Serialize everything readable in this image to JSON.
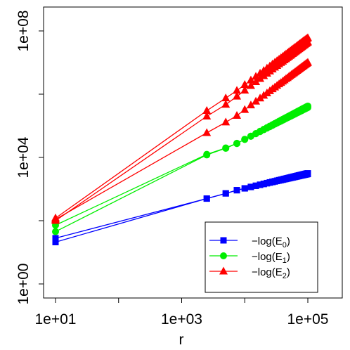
{
  "chart_data": {
    "type": "line",
    "xlabel": "r",
    "ylabel": "",
    "x_scale": "log10",
    "y_scale": "log10",
    "xlim": [
      10,
      100000
    ],
    "ylim": [
      1,
      100000000
    ],
    "x_ticks": [
      {
        "value": 10,
        "label": "1e+01"
      },
      {
        "value": 100,
        "label": ""
      },
      {
        "value": 1000,
        "label": "1e+03"
      },
      {
        "value": 10000,
        "label": ""
      },
      {
        "value": 100000,
        "label": "1e+05"
      }
    ],
    "y_ticks": [
      {
        "value": 1,
        "label": "1e+00"
      },
      {
        "value": 100,
        "label": ""
      },
      {
        "value": 10000,
        "label": "1e+04"
      },
      {
        "value": 1000000,
        "label": ""
      },
      {
        "value": 100000000,
        "label": "1e+08"
      }
    ],
    "grid": false,
    "legend_position": "bottom-right",
    "series": [
      {
        "id": "E0a",
        "legend_index": 0,
        "color": "#0000FF",
        "marker": "square",
        "x": [
          10,
          2500,
          5000,
          7500,
          100000
        ],
        "y": [
          28,
          500,
          730,
          920,
          3000
        ],
        "fill_to_x": 100000
      },
      {
        "id": "E0b",
        "legend_index": 0,
        "color": "#0000FF",
        "marker": "square",
        "x": [
          10,
          2500,
          5000,
          7500,
          100000
        ],
        "y": [
          21,
          500,
          730,
          920,
          3150
        ],
        "fill_to_x": 100000
      },
      {
        "id": "E1a",
        "legend_index": 1,
        "color": "#00EE00",
        "marker": "circle",
        "x": [
          10,
          2500,
          5000,
          7500,
          100000
        ],
        "y": [
          72,
          12500,
          20000,
          28000,
          380000
        ],
        "fill_to_x": 100000
      },
      {
        "id": "E1b",
        "legend_index": 1,
        "color": "#00EE00",
        "marker": "circle",
        "x": [
          10,
          2500,
          5000,
          7500,
          100000
        ],
        "y": [
          45,
          12000,
          19500,
          27500,
          420000
        ],
        "fill_to_x": 100000
      },
      {
        "id": "E2a",
        "legend_index": 2,
        "color": "#FF0000",
        "marker": "triangle",
        "x": [
          10,
          2500,
          5000,
          7500,
          100000
        ],
        "y": [
          120,
          300000,
          750000,
          1300000,
          60000000
        ],
        "fill_to_x": 100000
      },
      {
        "id": "E2b",
        "legend_index": 2,
        "color": "#FF0000",
        "marker": "triangle",
        "x": [
          10,
          2500,
          5000,
          7500,
          100000
        ],
        "y": [
          100,
          200000,
          470000,
          850000,
          44000000
        ],
        "fill_to_x": 100000
      },
      {
        "id": "E2c",
        "legend_index": 2,
        "color": "#FF0000",
        "marker": "triangle",
        "x": [
          10,
          2500,
          5000,
          7500,
          100000
        ],
        "y": [
          110,
          60000,
          130000,
          210000,
          10000000
        ],
        "fill_to_x": 100000
      }
    ],
    "legend": [
      {
        "prefix": "−log(E",
        "subscript": "0",
        "suffix": ")",
        "color": "#0000FF",
        "marker": "square"
      },
      {
        "prefix": "−log(E",
        "subscript": "1",
        "suffix": ")",
        "color": "#00EE00",
        "marker": "circle"
      },
      {
        "prefix": "−log(E",
        "subscript": "2",
        "suffix": ")",
        "color": "#FF0000",
        "marker": "triangle"
      }
    ]
  }
}
